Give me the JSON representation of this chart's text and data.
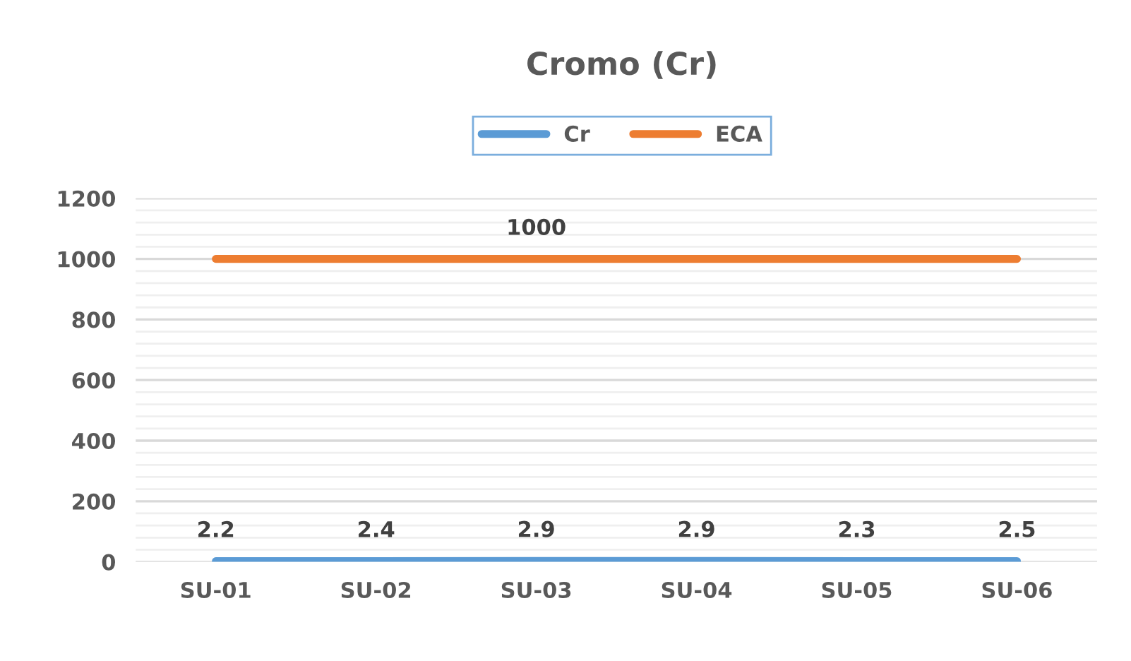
{
  "chart_data": {
    "type": "line",
    "title": "Cromo (Cr)",
    "categories": [
      "SU-01",
      "SU-02",
      "SU-03",
      "SU-04",
      "SU-05",
      "SU-06"
    ],
    "series": [
      {
        "name": "Cr",
        "color": "#5b9bd5",
        "values": [
          2.2,
          2.4,
          2.9,
          2.9,
          2.3,
          2.5
        ],
        "value_labels": [
          "2.2",
          "2.4",
          "2.9",
          "2.9",
          "2.3",
          "2.5"
        ]
      },
      {
        "name": "ECA",
        "color": "#ed7d31",
        "values": [
          1000,
          1000,
          1000,
          1000,
          1000,
          1000
        ],
        "value_labels": [
          null,
          null,
          "1000",
          null,
          null,
          null
        ]
      }
    ],
    "ylim": [
      0,
      1200
    ],
    "yticks": [
      0,
      200,
      400,
      600,
      800,
      1000,
      1200
    ],
    "grid": "y",
    "legend": "top",
    "marker": "none",
    "line_style": "solid"
  }
}
